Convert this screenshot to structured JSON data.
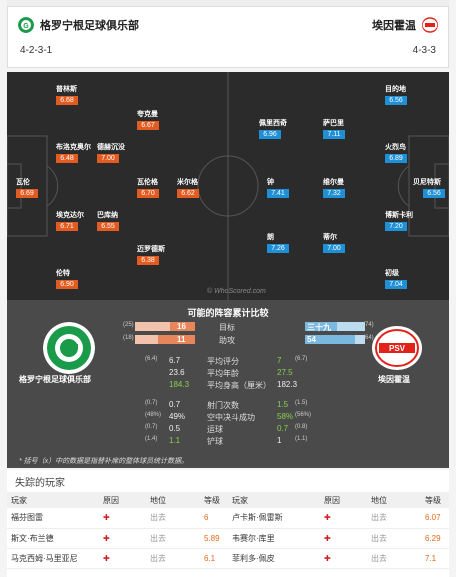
{
  "header": {
    "home_team": "格罗宁根足球俱乐部",
    "away_team": "埃因霍温",
    "home_formation": "4-2-3-1",
    "away_formation": "4-3-3",
    "home_color": "#1a9b4a",
    "away_color": "#e2231a"
  },
  "pitch": {
    "watermark": "© WhoScored.com",
    "home_players": [
      {
        "name": "普林斯",
        "rating": "6.68"
      },
      {
        "name": "夸克曼",
        "rating": "6.67"
      },
      {
        "name": "布洛克奥尔",
        "rating": "6.48"
      },
      {
        "name": "德赫沉没",
        "rating": "7.00"
      },
      {
        "name": "瓦伦",
        "rating": "6.69"
      },
      {
        "name": "瓦伦格",
        "rating": "6.70"
      },
      {
        "name": "米尔格",
        "rating": "6.62"
      },
      {
        "name": "埃克达尔",
        "rating": "6.71"
      },
      {
        "name": "巴库纳",
        "rating": "6.55"
      },
      {
        "name": "迈罗德斯",
        "rating": "6.38"
      },
      {
        "name": "伦特",
        "rating": "6.90"
      }
    ],
    "away_players": [
      {
        "name": "佩里西奇",
        "rating": "6.96"
      },
      {
        "name": "萨巴里",
        "rating": "7.11"
      },
      {
        "name": "目的地",
        "rating": "6.56"
      },
      {
        "name": "火烈鸟",
        "rating": "6.89"
      },
      {
        "name": "钟",
        "rating": "7.41"
      },
      {
        "name": "维尔曼",
        "rating": "7.32"
      },
      {
        "name": "贝尼特斯",
        "rating": "6.56"
      },
      {
        "name": "博斯卡利",
        "rating": "7.20"
      },
      {
        "name": "朗",
        "rating": "7.26"
      },
      {
        "name": "蒂尔",
        "rating": "7.00"
      },
      {
        "name": "初级",
        "rating": "7.04"
      }
    ]
  },
  "stats": {
    "title": "可能的阵容累计比较",
    "home_name": "格罗宁根足球俱乐部",
    "away_name": "埃因霍温",
    "goals": {
      "label": "目标",
      "home": "16",
      "home_sub": "(25)",
      "away": "三十九",
      "away_sub": "(74)",
      "home_frac": 0.41,
      "away_frac": 0.53
    },
    "assists": {
      "label": "助攻",
      "home": "11",
      "home_sub": "(18)",
      "away": "54",
      "away_sub": "(64)",
      "home_frac": 0.61,
      "away_frac": 0.84
    },
    "rows": [
      {
        "label": "平均评分",
        "home": "6.7",
        "home_sub": "(6.4)",
        "away": "7",
        "away_sub": "(6.7)",
        "away_green": true
      },
      {
        "label": "平均年龄",
        "home": "23.6",
        "home_sub": "",
        "away": "27.5",
        "away_sub": "",
        "away_green": true
      },
      {
        "label": "平均身高（厘米）",
        "home": "184.3",
        "home_sub": "",
        "away": "182.3",
        "away_sub": "",
        "home_green": true
      },
      {
        "label": "射门次数",
        "home": "0.7",
        "home_sub": "(0.7)",
        "away": "1.5",
        "away_sub": "(1.5)",
        "away_green": true
      },
      {
        "label": "空中决斗成功",
        "home": "49%",
        "home_sub": "(48%)",
        "away": "58%",
        "away_sub": "(56%)",
        "away_green": true
      },
      {
        "label": "运球",
        "home": "0.5",
        "home_sub": "(0.7)",
        "away": "0.7",
        "away_sub": "(0.8)",
        "away_green": true
      },
      {
        "label": "铲球",
        "home": "1.1",
        "home_sub": "(1.4)",
        "away": "1",
        "away_sub": "(1.1)",
        "home_green": true
      }
    ],
    "footnote": "* 括号（x）中的数据是指替补席的整体球员统计数据。"
  },
  "missing": {
    "title": "失踪的玩家",
    "headers": {
      "player": "玩家",
      "reason": "原因",
      "status": "地位",
      "rating": "等级"
    },
    "home": [
      {
        "player": "福芬图雷",
        "status": "出去",
        "rating": "6"
      },
      {
        "player": "斯文·布兰德",
        "status": "出去",
        "rating": "5.89"
      },
      {
        "player": "马克西姆·马里亚尼",
        "status": "出去",
        "rating": "6.1"
      }
    ],
    "away": [
      {
        "player": "卢卡斯·佩雷斯",
        "status": "出去",
        "rating": "6.07"
      },
      {
        "player": "韦赛尔·库里",
        "status": "出去",
        "rating": "6.29"
      },
      {
        "player": "菲利多·佩皮",
        "status": "出去",
        "rating": "7.1"
      }
    ]
  }
}
